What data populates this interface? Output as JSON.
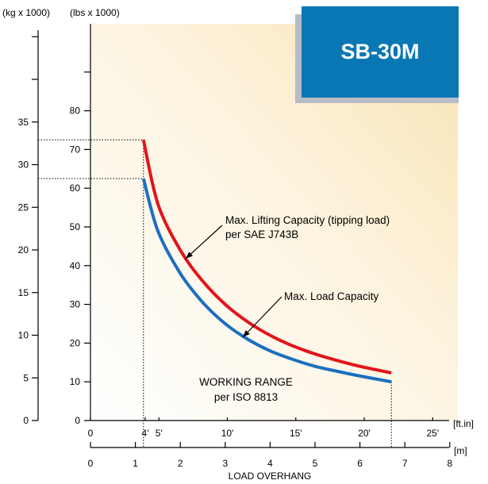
{
  "model_badge": "SB-30M",
  "chart_data": {
    "type": "line",
    "title": "",
    "xlabel": "LOAD OVERHANG",
    "x_unit_ft": "[ft.in]",
    "x_unit_m": "[m]",
    "y_unit_kg": "(kg x 1000)",
    "y_unit_lbs": "(lbs x 1000)",
    "x_ft_ticks": [
      "0",
      "4'",
      "5'",
      "10'",
      "15'",
      "20'",
      "25'"
    ],
    "x_m_ticks": [
      "0",
      "1",
      "2",
      "3",
      "4",
      "5",
      "6",
      "7",
      "8"
    ],
    "y_lbs_ticks": [
      "0",
      "10",
      "20",
      "30",
      "40",
      "50",
      "60",
      "70",
      "80"
    ],
    "y_kg_ticks": [
      "0",
      "5",
      "10",
      "15",
      "20",
      "25",
      "30",
      "35"
    ],
    "xlim_m": [
      0,
      8
    ],
    "ylim_lbs": [
      0,
      80
    ],
    "grid": false,
    "series": [
      {
        "name": "Max. Lifting Capacity (tipping load) per SAE J743B",
        "color": "#e3141b",
        "x_m": [
          1.18,
          1.5,
          2.0,
          2.5,
          3.0,
          3.5,
          4.0,
          4.5,
          5.0,
          5.5,
          6.0,
          6.7
        ],
        "y_lbs": [
          72.5,
          56.0,
          44.0,
          36.0,
          30.0,
          25.5,
          22.0,
          19.3,
          17.2,
          15.5,
          14.0,
          12.3
        ]
      },
      {
        "name": "Max. Load Capacity",
        "color": "#1c6fc0",
        "x_m": [
          1.18,
          1.5,
          2.0,
          2.5,
          3.0,
          3.5,
          4.0,
          4.5,
          5.0,
          5.5,
          6.0,
          6.7
        ],
        "y_lbs": [
          62.5,
          49.0,
          38.0,
          30.5,
          25.0,
          21.0,
          18.0,
          15.8,
          14.0,
          12.7,
          11.5,
          10.0
        ]
      }
    ],
    "annotations": {
      "lifting_line1": "Max. Lifting Capacity (tipping load)",
      "lifting_line2": "per SAE J743B",
      "load": "Max. Load Capacity",
      "range_line1": "WORKING RANGE",
      "range_line2": "per ISO 8813"
    }
  }
}
